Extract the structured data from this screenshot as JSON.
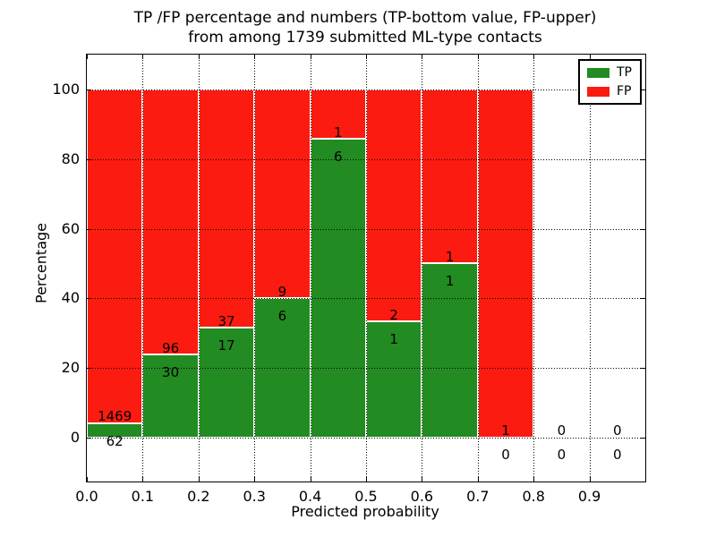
{
  "figure": {
    "title_line1": "TP /FP percentage and numbers (TP-bottom value, FP-upper)",
    "title_line2": "from among 1739 submitted ML-type contacts"
  },
  "chart_data": {
    "type": "bar",
    "stacked": true,
    "title": "TP /FP percentage and numbers (TP-bottom value, FP-upper)\nfrom among 1739 submitted ML-type contacts",
    "xlabel": "Predicted probability",
    "ylabel": "Percentage",
    "xlim": [
      0.0,
      1.0
    ],
    "ylim": [
      -12.6,
      110.0
    ],
    "y_ticks": [
      0,
      20,
      40,
      60,
      80,
      100
    ],
    "x_tick_labels": [
      "0.0",
      "0.1",
      "0.2",
      "0.3",
      "0.4",
      "0.5",
      "0.6",
      "0.7",
      "0.8",
      "0.9"
    ],
    "grid": "dotted",
    "colors": {
      "tp": "#228b22",
      "fp": "#fb1b10",
      "grid": "#000000",
      "frame": "#000000"
    },
    "legend": {
      "position": "upper right",
      "entries": [
        {
          "label": "TP",
          "color": "#228b22"
        },
        {
          "label": "FP",
          "color": "#fb1b10"
        }
      ]
    },
    "bins": [
      {
        "x0": 0.0,
        "x1": 0.1,
        "tp": 62,
        "fp": 1469,
        "tp_pct": 4.05
      },
      {
        "x0": 0.1,
        "x1": 0.2,
        "tp": 30,
        "fp": 96,
        "tp_pct": 23.81
      },
      {
        "x0": 0.2,
        "x1": 0.3,
        "tp": 17,
        "fp": 37,
        "tp_pct": 31.48
      },
      {
        "x0": 0.3,
        "x1": 0.4,
        "tp": 6,
        "fp": 9,
        "tp_pct": 40.0
      },
      {
        "x0": 0.4,
        "x1": 0.5,
        "tp": 6,
        "fp": 1,
        "tp_pct": 85.71
      },
      {
        "x0": 0.5,
        "x1": 0.6,
        "tp": 1,
        "fp": 2,
        "tp_pct": 33.33
      },
      {
        "x0": 0.6,
        "x1": 0.7,
        "tp": 1,
        "fp": 1,
        "tp_pct": 50.0
      },
      {
        "x0": 0.7,
        "x1": 0.8,
        "tp": 0,
        "fp": 1,
        "tp_pct": 0.0
      },
      {
        "x0": 0.8,
        "x1": 0.9,
        "tp": 0,
        "fp": 0,
        "tp_pct": 0.0
      },
      {
        "x0": 0.9,
        "x1": 1.0,
        "tp": 0,
        "fp": 0,
        "tp_pct": 0.0
      }
    ]
  }
}
